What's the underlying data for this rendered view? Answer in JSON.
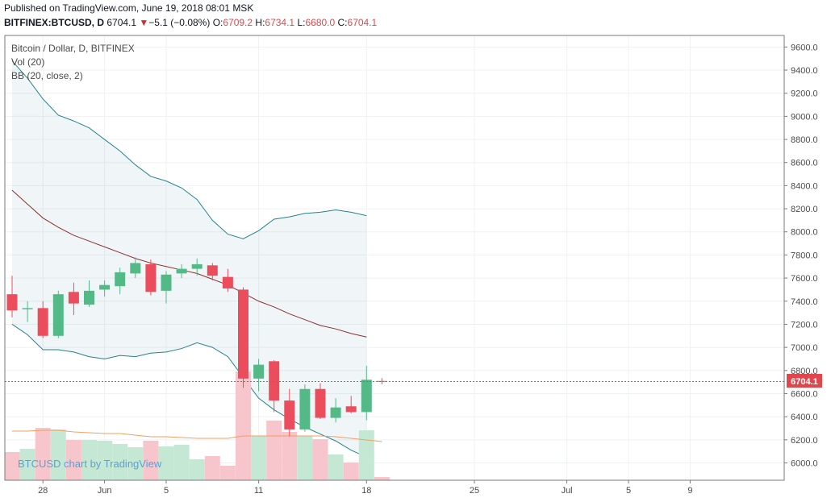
{
  "header": {
    "published": "Published on TradingView.com, June 19, 2018 08:01 MSK",
    "symbol": "BITFINEX:BTCUSD, D",
    "last": "6704.1",
    "change_arrow": "▼",
    "change": "−5.1 (−0.08%)",
    "o_label": "O:",
    "o": "6709.2",
    "h_label": "H:",
    "h": "6734.1",
    "l_label": "L:",
    "l": "6680.0",
    "c_label": "C:",
    "c": "6704.1"
  },
  "legend": {
    "title": "Bitcoin / Dollar, D, BITFINEX",
    "vol": "Vol (20)",
    "bb": "BB (20, close, 2)"
  },
  "watermark": "BTCUSD chart by TradingView",
  "price_tag": "6704.1",
  "colors": {
    "up": "#53b987",
    "down": "#eb4d5c",
    "band": "#26828e",
    "basis": "#8c2f2f",
    "vol_ma": "#f0a060",
    "tag": "#e0474c"
  },
  "chart_data": {
    "type": "candlestick",
    "y_ticks": [
      6000,
      6200,
      6400,
      6600,
      6800,
      7000,
      7200,
      7400,
      7600,
      7800,
      8000,
      8200,
      8400,
      8600,
      8800,
      9000,
      9200,
      9400,
      9600
    ],
    "y_range": [
      5850,
      9700
    ],
    "x_tick_labels": [
      {
        "label": "28",
        "i": 2
      },
      {
        "label": "Jun",
        "i": 6
      },
      {
        "label": "5",
        "i": 10
      },
      {
        "label": "11",
        "i": 16
      },
      {
        "label": "18",
        "i": 23
      },
      {
        "label": "25",
        "i": 30
      },
      {
        "label": "Jul",
        "i": 36
      },
      {
        "label": "5",
        "i": 40
      },
      {
        "label": "9",
        "i": 44
      }
    ],
    "candles": [
      {
        "o": 7460,
        "h": 7620,
        "l": 7260,
        "c": 7320
      },
      {
        "o": 7330,
        "h": 7400,
        "l": 7220,
        "c": 7340
      },
      {
        "o": 7340,
        "h": 7400,
        "l": 7080,
        "c": 7100
      },
      {
        "o": 7100,
        "h": 7490,
        "l": 7080,
        "c": 7460
      },
      {
        "o": 7480,
        "h": 7560,
        "l": 7280,
        "c": 7380
      },
      {
        "o": 7370,
        "h": 7580,
        "l": 7350,
        "c": 7490
      },
      {
        "o": 7500,
        "h": 7580,
        "l": 7440,
        "c": 7540
      },
      {
        "o": 7530,
        "h": 7690,
        "l": 7460,
        "c": 7650
      },
      {
        "o": 7640,
        "h": 7780,
        "l": 7600,
        "c": 7730
      },
      {
        "o": 7720,
        "h": 7760,
        "l": 7450,
        "c": 7480
      },
      {
        "o": 7490,
        "h": 7660,
        "l": 7380,
        "c": 7630
      },
      {
        "o": 7640,
        "h": 7720,
        "l": 7600,
        "c": 7680
      },
      {
        "o": 7680,
        "h": 7770,
        "l": 7620,
        "c": 7720
      },
      {
        "o": 7710,
        "h": 7730,
        "l": 7580,
        "c": 7620
      },
      {
        "o": 7610,
        "h": 7680,
        "l": 7480,
        "c": 7510
      },
      {
        "o": 7500,
        "h": 7520,
        "l": 6650,
        "c": 6730
      },
      {
        "o": 6730,
        "h": 6900,
        "l": 6620,
        "c": 6850
      },
      {
        "o": 6880,
        "h": 6890,
        "l": 6440,
        "c": 6540
      },
      {
        "o": 6540,
        "h": 6640,
        "l": 6230,
        "c": 6290
      },
      {
        "o": 6290,
        "h": 6680,
        "l": 6270,
        "c": 6640
      },
      {
        "o": 6640,
        "h": 6690,
        "l": 6380,
        "c": 6390
      },
      {
        "o": 6390,
        "h": 6560,
        "l": 6350,
        "c": 6480
      },
      {
        "o": 6490,
        "h": 6580,
        "l": 6430,
        "c": 6440
      },
      {
        "o": 6440,
        "h": 6840,
        "l": 6370,
        "c": 6720
      },
      {
        "o": 6709.2,
        "h": 6734.1,
        "l": 6680.0,
        "c": 6704.1
      }
    ],
    "volume": [
      0.35,
      0.39,
      0.65,
      0.63,
      0.5,
      0.5,
      0.49,
      0.45,
      0.41,
      0.49,
      0.42,
      0.44,
      0.26,
      0.3,
      0.18,
      1.35,
      0.55,
      0.74,
      0.6,
      0.55,
      0.51,
      0.32,
      0.22,
      0.62,
      0.04
    ],
    "volume_ma": [
      0.61,
      0.61,
      0.62,
      0.62,
      0.6,
      0.59,
      0.58,
      0.58,
      0.56,
      0.54,
      0.54,
      0.53,
      0.52,
      0.52,
      0.52,
      0.55,
      0.55,
      0.55,
      0.55,
      0.55,
      0.55,
      0.54,
      0.52,
      0.5,
      0.48
    ],
    "bb_upper": [
      9480,
      9330,
      9150,
      9010,
      8960,
      8900,
      8800,
      8700,
      8580,
      8480,
      8440,
      8380,
      8280,
      8100,
      7980,
      7940,
      8010,
      8110,
      8130,
      8160,
      8170,
      8190,
      8170,
      8140
    ],
    "bb_basis": [
      8360,
      8240,
      8120,
      8040,
      7970,
      7920,
      7870,
      7820,
      7770,
      7730,
      7700,
      7670,
      7640,
      7590,
      7540,
      7470,
      7400,
      7350,
      7290,
      7240,
      7190,
      7160,
      7120,
      7090
    ],
    "bb_lower": [
      7200,
      7110,
      6980,
      6980,
      6960,
      6920,
      6900,
      6930,
      6920,
      6950,
      6960,
      6990,
      7040,
      7000,
      6920,
      6740,
      6560,
      6460,
      6380,
      6310,
      6250,
      6190,
      6110,
      6050
    ]
  }
}
